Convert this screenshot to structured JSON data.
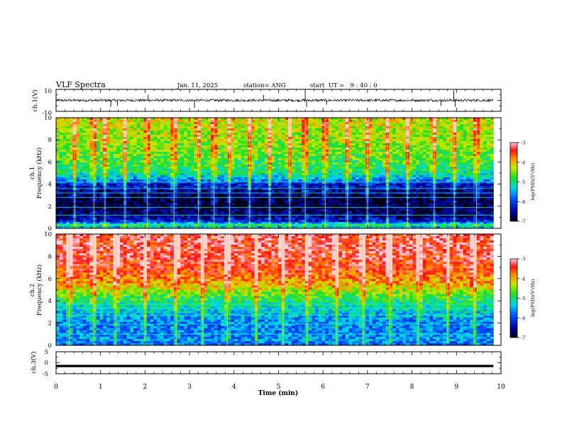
{
  "header": {
    "title": "VLF Spectra",
    "date": "Jan. 11, 2025",
    "station": "station= ANG",
    "start_ut": "start  UT =   9 : 40 : 0"
  },
  "chart_data": [
    {
      "type": "line",
      "id": "ch1_waveform",
      "ylabel": "ch.1(V)",
      "ylim": [
        -10,
        10
      ],
      "yticks": [
        "10",
        "-10"
      ],
      "x": {
        "range": [
          0,
          10
        ],
        "data_end": 9.83
      },
      "baseline": 0,
      "note_spikes": [
        {
          "x": 1.23,
          "y": -6
        },
        {
          "x": 1.38,
          "y": -5
        },
        {
          "x": 2.07,
          "y": 5
        },
        {
          "x": 3.11,
          "y": -7
        },
        {
          "x": 4.66,
          "y": 5
        },
        {
          "x": 5.6,
          "y": 9
        },
        {
          "x": 5.63,
          "y": -6
        },
        {
          "x": 6.08,
          "y": -4
        },
        {
          "x": 8.94,
          "y": 9
        },
        {
          "x": 8.97,
          "y": -6
        },
        {
          "x": 8.65,
          "y": -5
        }
      ]
    },
    {
      "type": "heatmap",
      "id": "ch1_spectrogram",
      "ylabel": "ch.1\nFrequency (kHz)",
      "ylabel_lines": [
        "ch.1",
        "Frequency (kHz)"
      ],
      "ylim": [
        0,
        10
      ],
      "yticks": [
        "0",
        "2",
        "4",
        "6",
        "8",
        "10"
      ],
      "x": {
        "range": [
          0,
          10
        ],
        "data_end": 9.83
      },
      "colorbar": {
        "label": "log(PSD)(V²/Hz)",
        "range": [
          -7,
          -3
        ],
        "ticks": [
          "-7",
          "-6",
          "-5",
          "-4",
          "-3"
        ]
      },
      "profile_kHz": [
        {
          "f": 0.0,
          "v": -5.6
        },
        {
          "f": 0.3,
          "v": -5.0
        },
        {
          "f": 0.6,
          "v": -6.2
        },
        {
          "f": 1.2,
          "v": -6.7
        },
        {
          "f": 2.0,
          "v": -6.9
        },
        {
          "f": 3.0,
          "v": -6.8
        },
        {
          "f": 4.0,
          "v": -6.3
        },
        {
          "f": 4.4,
          "v": -5.6
        },
        {
          "f": 5.0,
          "v": -5.1
        },
        {
          "f": 6.0,
          "v": -4.8
        },
        {
          "f": 7.0,
          "v": -4.6
        },
        {
          "f": 8.0,
          "v": -4.5
        },
        {
          "f": 9.0,
          "v": -4.4
        },
        {
          "f": 10.0,
          "v": -4.3
        }
      ],
      "lines_kHz": [
        0.4,
        1.2,
        1.9,
        2.8,
        3.2,
        3.6,
        4.2
      ],
      "bursts_min": [
        0.42,
        0.85,
        1.1,
        1.55,
        2.05,
        2.65,
        3.2,
        3.55,
        3.9,
        4.35,
        4.8,
        5.25,
        5.6,
        6.05,
        6.55,
        7.0,
        7.45,
        7.9,
        8.5,
        8.95,
        9.45
      ]
    },
    {
      "type": "heatmap",
      "id": "ch2_spectrogram",
      "ylabel": "ch.2\nFrequency (kHz)",
      "ylabel_lines": [
        "ch.2",
        "Frequency (kHz)"
      ],
      "ylim": [
        0,
        10
      ],
      "yticks": [
        "0",
        "2",
        "4",
        "6",
        "8",
        "10"
      ],
      "x": {
        "range": [
          0,
          10
        ],
        "data_end": 9.83
      },
      "colorbar": {
        "label": "log(PSD)(V²/Hz)",
        "range": [
          -7,
          -3
        ],
        "ticks": [
          "-7",
          "-6",
          "-5",
          "-4",
          "-3"
        ]
      },
      "profile_kHz": [
        {
          "f": 0.0,
          "v": -5.8
        },
        {
          "f": 0.5,
          "v": -5.6
        },
        {
          "f": 1.0,
          "v": -5.7
        },
        {
          "f": 2.0,
          "v": -5.7
        },
        {
          "f": 3.0,
          "v": -5.4
        },
        {
          "f": 4.0,
          "v": -5.0
        },
        {
          "f": 4.8,
          "v": -4.5
        },
        {
          "f": 5.5,
          "v": -4.0
        },
        {
          "f": 6.5,
          "v": -3.6
        },
        {
          "f": 8.0,
          "v": -3.4
        },
        {
          "f": 10.0,
          "v": -3.3
        }
      ],
      "lines_kHz": [
        1.0,
        1.9,
        2.7,
        3.3,
        3.7
      ],
      "bursts_min": [
        0.3,
        0.85,
        1.35,
        2.0,
        2.7,
        3.3,
        3.85,
        4.5,
        5.1,
        5.65,
        6.3,
        6.9,
        7.5,
        8.15,
        8.8,
        9.4
      ]
    },
    {
      "type": "line",
      "id": "ch3_waveform",
      "ylabel": "ch.3(V)",
      "ylim": [
        -5,
        5
      ],
      "yticks": [
        "5",
        "0",
        "-5"
      ],
      "x": {
        "range": [
          0,
          10
        ],
        "data_end": 9.83
      },
      "baseline": -1.5
    }
  ],
  "xaxis": {
    "label": "Time (min)",
    "ticks": [
      "0",
      "1",
      "2",
      "3",
      "4",
      "5",
      "6",
      "7",
      "8",
      "9",
      "10"
    ]
  }
}
